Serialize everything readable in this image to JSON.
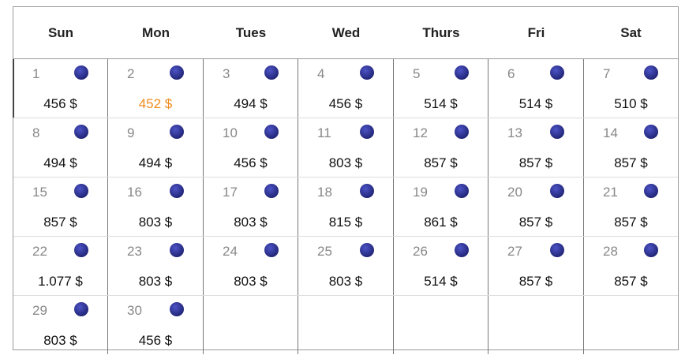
{
  "weekdays": [
    "Sun",
    "Mon",
    "Tues",
    "Wed",
    "Thurs",
    "Fri",
    "Sat"
  ],
  "weeks": [
    [
      {
        "day": "1",
        "price": "456 $"
      },
      {
        "day": "2",
        "price": "452 $",
        "lowest": true
      },
      {
        "day": "3",
        "price": "494 $"
      },
      {
        "day": "4",
        "price": "456 $"
      },
      {
        "day": "5",
        "price": "514 $"
      },
      {
        "day": "6",
        "price": "514 $"
      },
      {
        "day": "7",
        "price": "510 $"
      }
    ],
    [
      {
        "day": "8",
        "price": "494 $"
      },
      {
        "day": "9",
        "price": "494 $"
      },
      {
        "day": "10",
        "price": "456 $"
      },
      {
        "day": "11",
        "price": "803 $"
      },
      {
        "day": "12",
        "price": "857 $"
      },
      {
        "day": "13",
        "price": "857 $"
      },
      {
        "day": "14",
        "price": "857 $"
      }
    ],
    [
      {
        "day": "15",
        "price": "857 $"
      },
      {
        "day": "16",
        "price": "803 $"
      },
      {
        "day": "17",
        "price": "803 $"
      },
      {
        "day": "18",
        "price": "815 $"
      },
      {
        "day": "19",
        "price": "861 $"
      },
      {
        "day": "20",
        "price": "857 $"
      },
      {
        "day": "21",
        "price": "857 $"
      }
    ],
    [
      {
        "day": "22",
        "price": "1.077 $"
      },
      {
        "day": "23",
        "price": "803 $"
      },
      {
        "day": "24",
        "price": "803 $"
      },
      {
        "day": "25",
        "price": "803 $"
      },
      {
        "day": "26",
        "price": "514 $"
      },
      {
        "day": "27",
        "price": "857 $"
      },
      {
        "day": "28",
        "price": "857 $"
      }
    ],
    [
      {
        "day": "29",
        "price": "803 $"
      },
      {
        "day": "30",
        "price": "456 $"
      },
      null,
      null,
      null,
      null,
      null
    ]
  ],
  "colors": {
    "lowest_price": "#f08a1c",
    "moon_icon": "#2a2f8a",
    "day_number": "#888888"
  },
  "icons": {
    "night": "moon-icon"
  }
}
